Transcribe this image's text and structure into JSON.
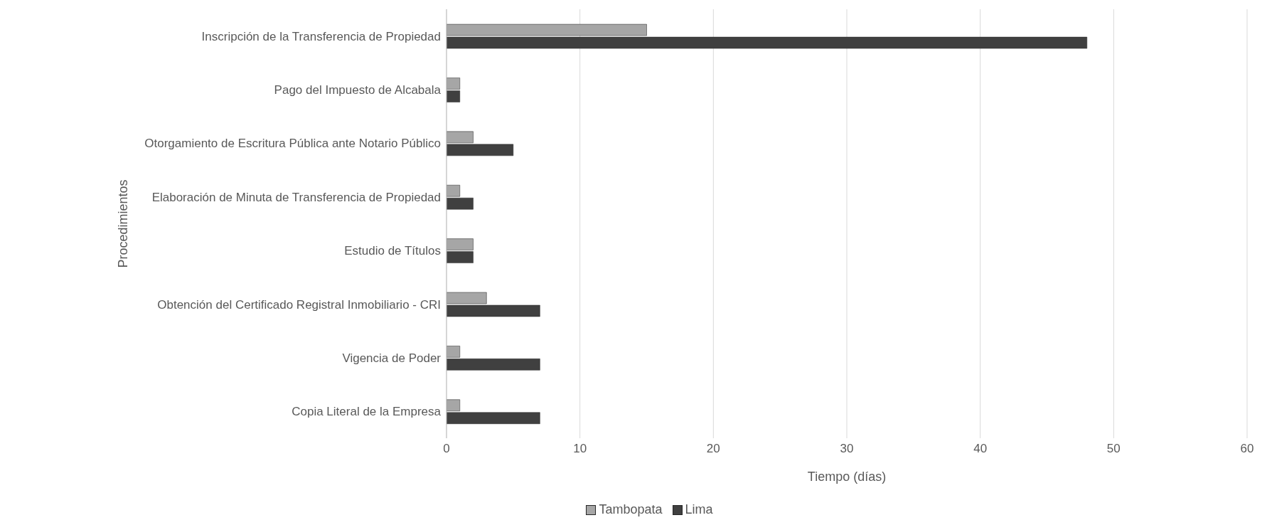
{
  "chart_data": {
    "type": "bar",
    "orientation": "horizontal",
    "xlabel": "Tiempo (días)",
    "ylabel": "Procedimientos",
    "categories": [
      "Inscripción de la Transferencia de Propiedad",
      "Pago del Impuesto de Alcabala",
      "Otorgamiento de Escritura Pública ante Notario Público",
      "Elaboración de Minuta de Transferencia de Propiedad",
      "Estudio de Títulos",
      "Obtención del Certificado Registral Inmobiliario - CRI",
      "Vigencia de Poder",
      "Copia Literal de la Empresa"
    ],
    "series": [
      {
        "name": "Tambopata",
        "color": "#a6a6a6",
        "values": [
          15,
          1,
          2,
          1,
          2,
          3,
          1,
          1
        ]
      },
      {
        "name": "Lima",
        "color": "#404040",
        "values": [
          48,
          1,
          5,
          2,
          2,
          7,
          7,
          7
        ]
      }
    ],
    "xlim": [
      0,
      60
    ],
    "xticks": [
      0,
      10,
      20,
      30,
      40,
      50,
      60
    ],
    "grid": "x",
    "legend": "bottom"
  }
}
